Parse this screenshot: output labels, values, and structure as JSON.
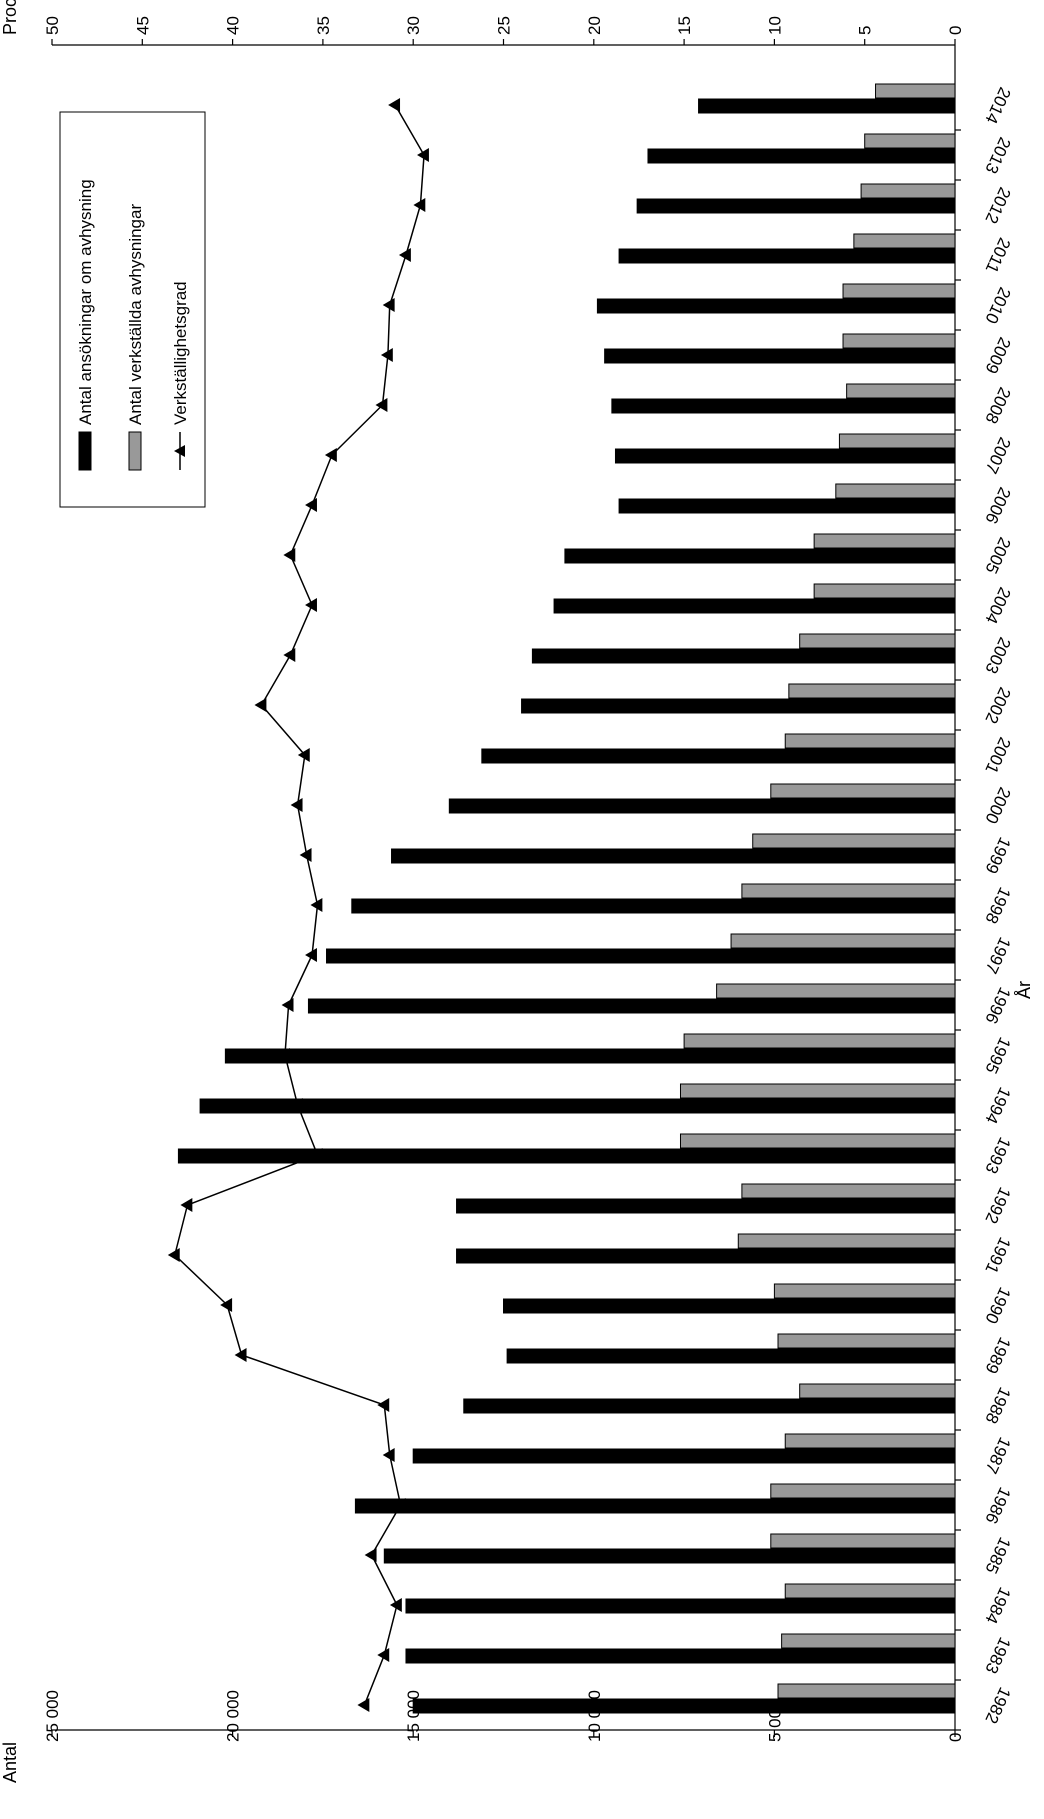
{
  "chart_data": {
    "type": "bar",
    "orientation": "horizontal",
    "rotated": true,
    "categories": [
      "1982",
      "1983",
      "1984",
      "1985",
      "1986",
      "1987",
      "1988",
      "1989",
      "1990",
      "1991",
      "1992",
      "1993",
      "1994",
      "1995",
      "1996",
      "1997",
      "1998",
      "1999",
      "2000",
      "2001",
      "2002",
      "2003",
      "2004",
      "2005",
      "2006",
      "2007",
      "2008",
      "2009",
      "2010",
      "2011",
      "2012",
      "2013",
      "2014"
    ],
    "x_axis_label": "År",
    "left_axis": {
      "label": "Antal",
      "range": [
        0,
        25000
      ],
      "ticks": [
        "0",
        "5 000",
        "10 000",
        "15 000",
        "20 000",
        "25 000"
      ]
    },
    "right_axis": {
      "label": "Procent",
      "range": [
        0,
        50
      ],
      "ticks": [
        "0",
        "5",
        "10",
        "15",
        "20",
        "25",
        "30",
        "35",
        "40",
        "45",
        "50"
      ]
    },
    "series": [
      {
        "name": "Antal ansökningar om avhysning",
        "axis": "left",
        "color": "#000000",
        "values": [
          15000,
          15200,
          15200,
          15800,
          16600,
          15000,
          13600,
          12400,
          12500,
          13800,
          13800,
          21500,
          20900,
          20200,
          17900,
          17400,
          16700,
          15600,
          14000,
          13100,
          12000,
          11700,
          11100,
          10800,
          9300,
          9400,
          9500,
          9700,
          9900,
          9300,
          8800,
          8500,
          7100
        ]
      },
      {
        "name": "Antal verkställda avhysningar",
        "axis": "left",
        "color": "#999999",
        "values": [
          4900,
          4800,
          4700,
          5100,
          5100,
          4700,
          4300,
          4900,
          5000,
          6000,
          5900,
          7600,
          7600,
          7500,
          6600,
          6200,
          5900,
          5600,
          5100,
          4700,
          4600,
          4300,
          3900,
          3900,
          3300,
          3200,
          3000,
          3100,
          3100,
          2800,
          2600,
          2500,
          2200
        ]
      },
      {
        "name": "Verkställighetsgrad",
        "axis": "right",
        "type": "line",
        "color": "#000000",
        "values": [
          32.7,
          31.6,
          30.9,
          32.3,
          30.7,
          31.3,
          31.6,
          39.5,
          40.3,
          43.2,
          42.5,
          35.3,
          36.4,
          37.1,
          36.9,
          35.6,
          35.3,
          35.9,
          36.4,
          36.0,
          38.4,
          36.8,
          35.6,
          36.8,
          35.6,
          34.5,
          31.7,
          31.4,
          31.3,
          30.4,
          29.6,
          29.4,
          31.0
        ]
      }
    ],
    "legend": {
      "position": "upper-right",
      "entries": [
        {
          "label": "Antal ansökningar om avhysning",
          "style": "box",
          "color": "#000000"
        },
        {
          "label": "Antal verkställda avhysningar",
          "style": "box",
          "color": "#999999"
        },
        {
          "label": "Verkställighetsgrad",
          "style": "line-marker",
          "color": "#000000"
        }
      ]
    },
    "grid": false
  }
}
